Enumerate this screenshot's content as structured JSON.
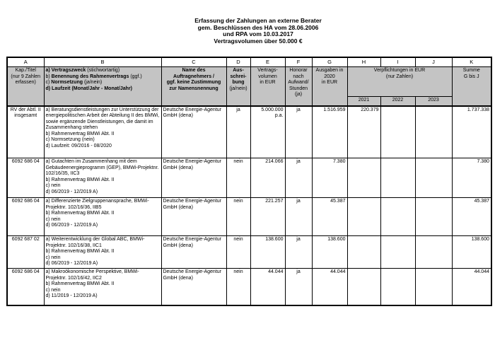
{
  "title": {
    "lines": [
      "Erfassung der Zahlungen an externe Berater",
      "gem. Beschlüssen des HA vom 28.06.2006",
      "und RPA vom 10.03.2017",
      "Vertragsvolumen über 50.000 €"
    ]
  },
  "table": {
    "header_bg": "#c4c4c4",
    "column_letters": [
      "A",
      "B",
      "C",
      "D",
      "E",
      "F",
      "G",
      "H",
      "I",
      "J",
      "K"
    ],
    "headers": {
      "kap": [
        "Kap./Titel",
        "(nur 9 Zahlen",
        "erfassen)"
      ],
      "vertrag": [
        {
          "pre": "",
          "strong": "a) Vertragszweck",
          "post": "  (stichwortartig)"
        },
        {
          "pre": "b) ",
          "strong": "Benennung des Rahmenvertrags",
          "post": " (ggf.)"
        },
        {
          "pre": "c)  ",
          "strong": "Normsetzung",
          "post": " (ja/nein)"
        },
        {
          "pre": "",
          "strong": "d) Laufzeit (Monat/Jahr - Monat/Jahr)",
          "post": ""
        }
      ],
      "name": [
        "Name des",
        "Auftragnehmers /",
        "ggf. keine Zustimmung",
        "zur Namensnennung"
      ],
      "ausschreibung_lines": [
        "Aus-",
        "schrei-",
        "bung"
      ],
      "ausschreibung_note": "(ja/nein)",
      "volumen": [
        "Vertrags-",
        "volumen",
        "in EUR"
      ],
      "honorar": [
        "Honorar",
        "nach",
        "Aufwand/",
        "Stunden",
        "(ja)"
      ],
      "ausgaben": [
        "Ausgaben in",
        "2020",
        "in EUR"
      ],
      "verpflichtungen": [
        "Verpflichtungen in EUR",
        "(nur Zahlen)"
      ],
      "years": [
        "2021",
        "2022",
        "2023"
      ],
      "summe": [
        "Summe",
        "G bis J"
      ]
    },
    "rows": [
      {
        "kap": "RV der Abtl. II insgesamt",
        "zweck_a": "a) Beratungsdienstleistungen zur Unterstützung der energiepolitischen Arbeit der Abteilung II des BMWi, sowie ergänzende Dienstleistungen, die damit im Zusammenhang stehen",
        "zweck_b": "b) Rahmenvertrag BMWi Abt. II",
        "zweck_c": "c) Normsetzung (nein)",
        "zweck_d": "d) Laufzeit: 09/2016 - 08/2020",
        "name": "Deutsche Energie-Agentur GmbH (dena)",
        "ausschreibung": "ja",
        "volumen": "5.000.000 p.a.",
        "honorar": "ja",
        "ausgaben": "1.516.959",
        "j2021": "220.379",
        "j2022": "",
        "j2023": "",
        "summe": "1.737.338"
      },
      {
        "kap": "6092 686 04",
        "zweck_a": "a) Gutachten im Zusammenhang mit dem Gebäudeenergieprogramm (GEP), BMWi-Projektnr. 102/16/35, IIC3",
        "zweck_b": "b) Rahmenvertrag BMWi Abt. II",
        "zweck_c": "c) nein",
        "zweck_d": "d) 06/2019 - 12/2019 A)",
        "name": "Deutsche Energie-Agentur GmbH (dena)",
        "ausschreibung": "nein",
        "volumen": "214.066",
        "honorar": "ja",
        "ausgaben": "7.380",
        "j2021": "",
        "j2022": "",
        "j2023": "",
        "summe": "7.380"
      },
      {
        "kap": "6092 686 04",
        "zweck_a": "a) Differenzierte Zielgruppenansprache, BMWi-Projektnr. 102/16/36, IIB5",
        "zweck_b": "b) Rahmenvertrag BMWi Abt. II",
        "zweck_c": "c) nein",
        "zweck_d": "d) 06/2019 - 12/2019 A)",
        "name": "Deutsche Energie-Agentur GmbH (dena)",
        "ausschreibung": "nein",
        "volumen": "221.257",
        "honorar": "ja",
        "ausgaben": "45.387",
        "j2021": "",
        "j2022": "",
        "j2023": "",
        "summe": "45.387"
      },
      {
        "kap": "6092 687 02",
        "zweck_a": "a) Weiterentwicklung der Global ABC, BMWi-Projektnr. 102/16/38, IIC1",
        "zweck_b": "b) Rahmenvertrag BMWi Abt. II",
        "zweck_c": "c) nein",
        "zweck_d": "d) 06/2019 - 12/2019 A)",
        "name": "Deutsche Energie-Agentur GmbH (dena)",
        "ausschreibung": "nein",
        "volumen": "138.600",
        "honorar": "ja",
        "ausgaben": "138.600",
        "j2021": "",
        "j2022": "",
        "j2023": "",
        "summe": "138.600"
      },
      {
        "kap": "6092 686 04",
        "zweck_a": "a) Makroökonomische Perspektive, BMWi-Projektnr. 102/16/42, IIC2",
        "zweck_b": "b) Rahmenvertrag BMWi Abt. II",
        "zweck_c": "c) nein",
        "zweck_d": "d) 11/2019 - 12/2019 A)",
        "name": "Deutsche Energie-Agentur GmbH (dena)",
        "ausschreibung": "nein",
        "volumen": "44.044",
        "honorar": "ja",
        "ausgaben": "44.044",
        "j2021": "",
        "j2022": "",
        "j2023": "",
        "summe": "44.044"
      }
    ]
  }
}
